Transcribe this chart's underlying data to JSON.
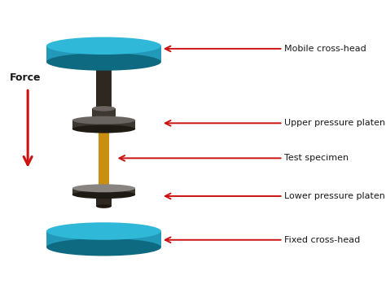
{
  "background_color": "#ffffff",
  "teal_color": "#2299b8",
  "teal_top": "#30b8d8",
  "teal_dark": "#0d6a80",
  "teal_side": "#1a8aaa",
  "dark_gray": "#3c3830",
  "medium_gray": "#6a6460",
  "light_gray": "#8a8480",
  "gold_color": "#c89010",
  "gold_light": "#e0a820",
  "gold_dark": "#906800",
  "red_arrow": "#cc1111",
  "text_color": "#1a1a1a",
  "labels": {
    "mobile_crosshead": "Mobile cross-head",
    "upper_platen": "Upper pressure platen",
    "test_specimen": "Test specimen",
    "lower_platen": "Lower pressure platen",
    "fixed_crosshead": "Fixed cross-head",
    "force": "Force"
  },
  "figsize": [
    4.74,
    3.6
  ],
  "dpi": 100
}
